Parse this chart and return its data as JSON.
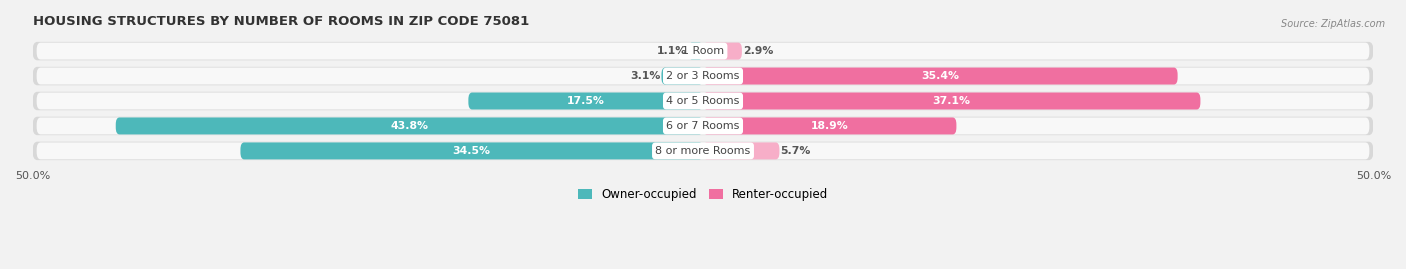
{
  "title": "HOUSING STRUCTURES BY NUMBER OF ROOMS IN ZIP CODE 75081",
  "source": "Source: ZipAtlas.com",
  "categories": [
    "1 Room",
    "2 or 3 Rooms",
    "4 or 5 Rooms",
    "6 or 7 Rooms",
    "8 or more Rooms"
  ],
  "owner_values": [
    1.1,
    3.1,
    17.5,
    43.8,
    34.5
  ],
  "renter_values": [
    2.9,
    35.4,
    37.1,
    18.9,
    5.7
  ],
  "owner_color": "#4db8ba",
  "renter_color": "#f06fa0",
  "renter_light_color": "#f7aec8",
  "owner_label": "Owner-occupied",
  "renter_label": "Renter-occupied",
  "axis_limit": 50.0,
  "background_color": "#f2f2f2",
  "bar_bg_color": "#e6e6e6",
  "bar_bg_light": "#f5f5f5",
  "title_fontsize": 9.5,
  "label_fontsize": 8,
  "value_fontsize": 7.8,
  "bar_height": 0.68,
  "owner_threshold": 8,
  "renter_threshold": 8
}
